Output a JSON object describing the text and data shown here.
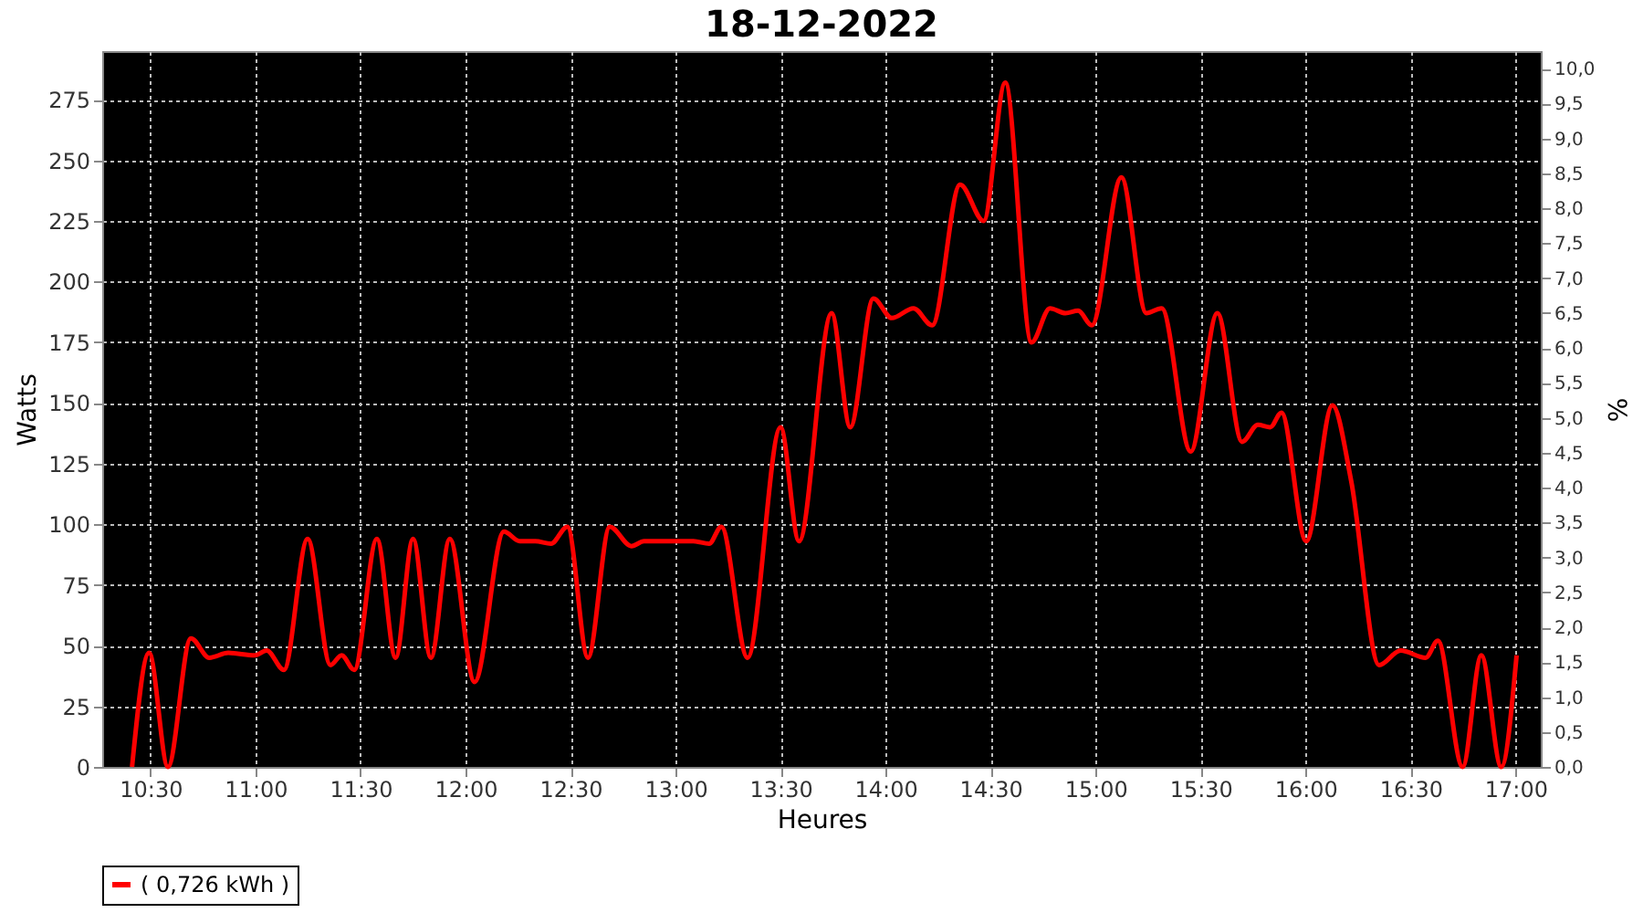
{
  "chart_data": {
    "type": "line",
    "title": "18-12-2022",
    "xlabel": "Heures",
    "ylabel": "Watts",
    "y2label": "%",
    "xlim": [
      10.27,
      17.12
    ],
    "ylim": [
      0,
      295
    ],
    "y2lim": [
      0,
      10.25
    ],
    "xticks": [
      {
        "value": 10.5,
        "label": "10:30"
      },
      {
        "value": 11,
        "label": "11:00"
      },
      {
        "value": 11.5,
        "label": "11:30"
      },
      {
        "value": 12,
        "label": "12:00"
      },
      {
        "value": 12.5,
        "label": "12:30"
      },
      {
        "value": 13,
        "label": "13:00"
      },
      {
        "value": 13.5,
        "label": "13:30"
      },
      {
        "value": 14,
        "label": "14:00"
      },
      {
        "value": 14.5,
        "label": "14:30"
      },
      {
        "value": 15,
        "label": "15:00"
      },
      {
        "value": 15.5,
        "label": "15:30"
      },
      {
        "value": 16,
        "label": "16:00"
      },
      {
        "value": 16.5,
        "label": "16:30"
      },
      {
        "value": 17,
        "label": "17:00"
      }
    ],
    "yticks": [
      0,
      25,
      50,
      75,
      100,
      125,
      150,
      175,
      200,
      225,
      250,
      275
    ],
    "y2ticks": [
      {
        "value": 0,
        "label": "0,0"
      },
      {
        "value": 0.5,
        "label": "0,5"
      },
      {
        "value": 1,
        "label": "1,0"
      },
      {
        "value": 1.5,
        "label": "1,5"
      },
      {
        "value": 2,
        "label": "2,0"
      },
      {
        "value": 2.5,
        "label": "2,5"
      },
      {
        "value": 3,
        "label": "3,0"
      },
      {
        "value": 3.5,
        "label": "3,5"
      },
      {
        "value": 4,
        "label": "4,0"
      },
      {
        "value": 4.5,
        "label": "4,5"
      },
      {
        "value": 5,
        "label": "5,0"
      },
      {
        "value": 5.5,
        "label": "5,5"
      },
      {
        "value": 6,
        "label": "6,0"
      },
      {
        "value": 6.5,
        "label": "6,5"
      },
      {
        "value": 7,
        "label": "7,0"
      },
      {
        "value": 7.5,
        "label": "7,5"
      },
      {
        "value": 8,
        "label": "8,0"
      },
      {
        "value": 8.5,
        "label": "8,5"
      },
      {
        "value": 9,
        "label": "9,0"
      },
      {
        "value": 9.5,
        "label": "9,5"
      },
      {
        "value": 10,
        "label": "10,0"
      }
    ],
    "grid": true,
    "legend": "bottom",
    "series": [
      {
        "name": "( 0,726 kWh )",
        "color": "#ff0000",
        "x": [
          10.412,
          10.493,
          10.583,
          10.692,
          10.78,
          10.87,
          10.997,
          11.053,
          11.135,
          11.248,
          11.357,
          11.41,
          11.47,
          11.578,
          11.667,
          11.75,
          11.835,
          11.925,
          12.043,
          12.183,
          12.258,
          12.332,
          12.407,
          12.485,
          12.583,
          12.687,
          12.79,
          12.85,
          13.085,
          13.16,
          13.218,
          13.343,
          13.5,
          13.588,
          13.743,
          13.832,
          13.942,
          14.03,
          14.133,
          14.222,
          14.355,
          14.467,
          14.57,
          14.695,
          14.783,
          14.857,
          14.917,
          14.982,
          15.123,
          15.242,
          15.315,
          15.453,
          15.58,
          15.698,
          15.773,
          15.832,
          15.885,
          16.003,
          16.128,
          16.217,
          16.35,
          16.453,
          16.572,
          16.63,
          16.748,
          16.837,
          16.932,
          17.005
        ],
        "values": [
          0,
          47,
          0,
          53,
          45,
          47,
          46,
          48,
          40,
          94,
          42,
          46,
          40,
          94,
          45,
          94,
          45,
          94,
          35,
          97,
          93,
          93,
          92,
          99,
          45,
          99,
          91,
          93,
          93,
          92,
          99,
          45,
          140,
          93,
          187,
          140,
          193,
          185,
          189,
          182,
          240,
          225,
          282,
          175,
          189,
          187,
          188,
          182,
          243,
          187,
          189,
          130,
          187,
          134,
          141,
          140,
          146,
          93,
          149,
          118,
          42,
          48,
          45,
          52,
          0,
          46,
          0,
          46
        ]
      }
    ]
  }
}
